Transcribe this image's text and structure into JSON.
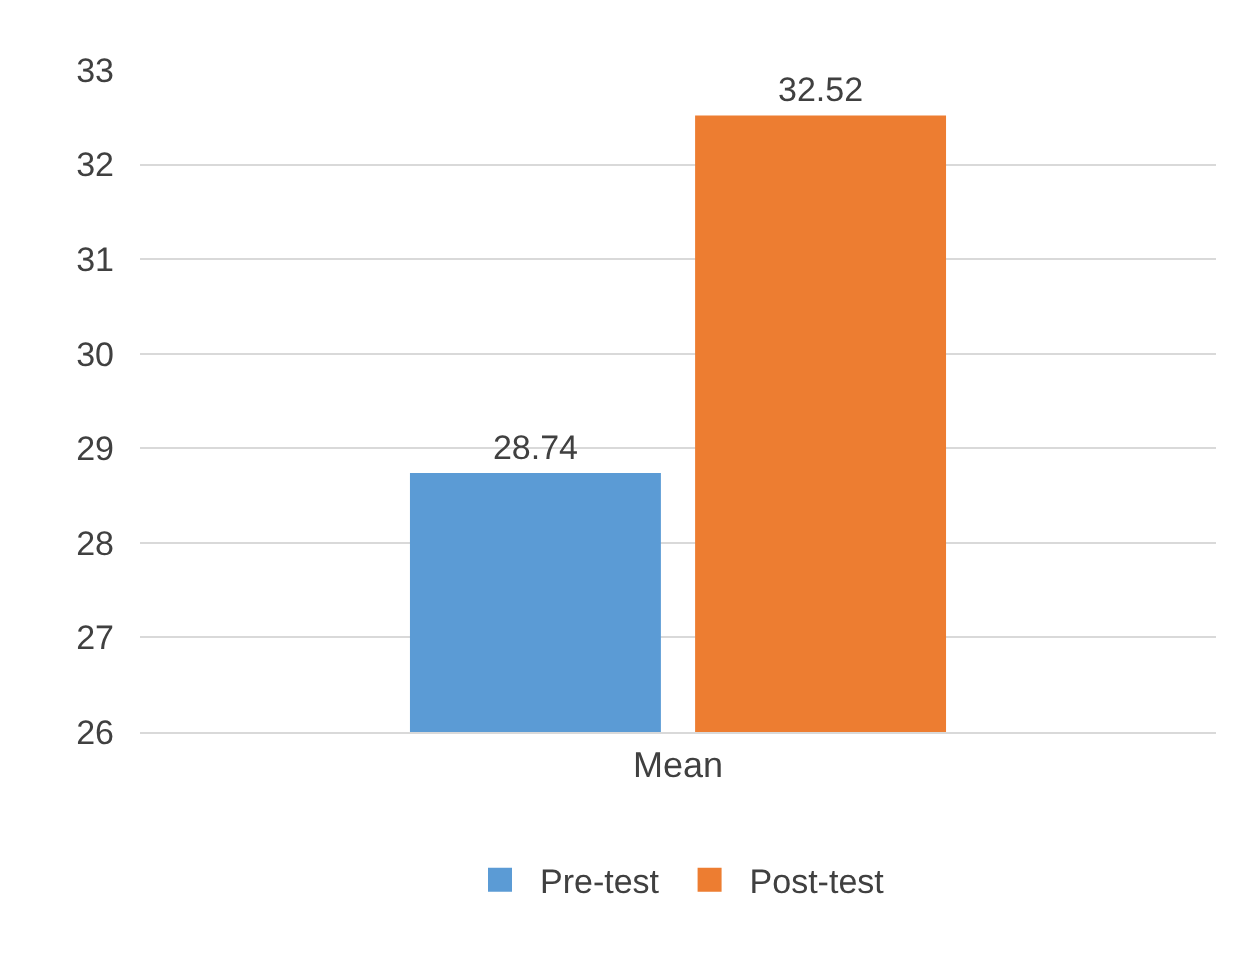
{
  "chart_data": {
    "type": "bar",
    "categories": [
      "Mean"
    ],
    "series": [
      {
        "name": "Pre-test",
        "color": "#5b9bd5",
        "values": [
          28.74
        ]
      },
      {
        "name": "Post-test",
        "color": "#ed7d31",
        "values": [
          32.52
        ]
      }
    ],
    "ylim": [
      26,
      33
    ],
    "yticks": [
      26,
      27,
      28,
      29,
      30,
      31,
      32,
      33
    ],
    "grid": "y",
    "legend": "bottom",
    "data_labels": true
  }
}
